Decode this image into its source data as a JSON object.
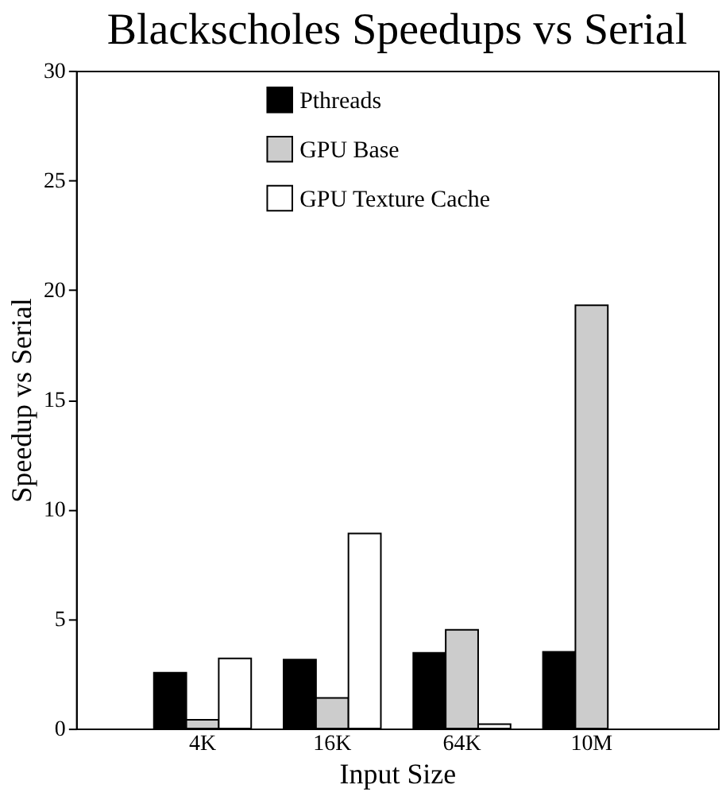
{
  "chart_data": {
    "type": "bar",
    "title": "Blackscholes Speedups vs Serial",
    "xlabel": "Input Size",
    "ylabel": "Speedup vs Serial",
    "categories": [
      "4K",
      "16K",
      "64K",
      "10M"
    ],
    "series": [
      {
        "name": "Pthreads",
        "color": "#000000",
        "values": [
          2.55,
          3.15,
          3.45,
          3.5
        ]
      },
      {
        "name": "GPU Base",
        "color": "#cccccc",
        "values": [
          0.4,
          1.4,
          4.5,
          19.3
        ]
      },
      {
        "name": "GPU Texture Cache",
        "color": "#ffffff",
        "values": [
          3.2,
          8.9,
          0.2,
          null
        ]
      }
    ],
    "ylim": [
      0,
      30
    ],
    "yticks": [
      0,
      5,
      10,
      15,
      20,
      25,
      30
    ],
    "grid": false,
    "legend": "top"
  }
}
